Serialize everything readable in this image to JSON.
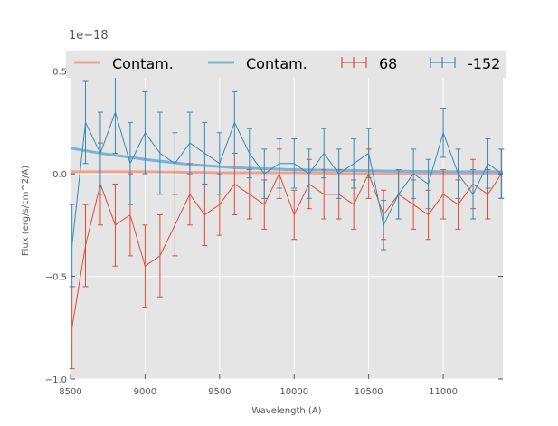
{
  "chart_data": {
    "type": "line",
    "title": "",
    "xlabel": "Wavelength (A)",
    "ylabel": "Flux (erg/s/cm^2/A)",
    "y_scale_label": "1e−18",
    "xlim": [
      8500,
      11400
    ],
    "ylim": [
      -1.0,
      0.6
    ],
    "x_ticks": [
      8500,
      9000,
      9500,
      10000,
      10500,
      11000
    ],
    "x_tick_labels": [
      "8500",
      "9000",
      "9500",
      "10000",
      "10500",
      "11000"
    ],
    "y_ticks": [
      -1.0,
      -0.5,
      0.0,
      0.5
    ],
    "y_tick_labels": [
      "−1.0",
      "−0.5",
      "0.0",
      "0.5"
    ],
    "grid": true,
    "legend_position": "top",
    "legend": [
      "Contam.",
      "Contam.",
      "68",
      "-152"
    ],
    "colors": {
      "red": "#e24a33",
      "blue": "#348abd",
      "contam_red": "#f0a08f",
      "contam_blue": "#7ab3d6",
      "background": "#e5e5e5",
      "grid": "#ffffff"
    },
    "series": [
      {
        "name": "68",
        "kind": "errorbar",
        "color": "#e24a33",
        "x": [
          8510,
          8600,
          8700,
          8800,
          8900,
          9000,
          9100,
          9200,
          9300,
          9400,
          9500,
          9600,
          9700,
          9800,
          9900,
          10000,
          10100,
          10200,
          10300,
          10400,
          10500,
          10600,
          10700,
          10800,
          10900,
          11000,
          11100,
          11200,
          11300,
          11390
        ],
        "y": [
          -0.75,
          -0.35,
          -0.05,
          -0.25,
          -0.2,
          -0.45,
          -0.4,
          -0.25,
          -0.1,
          -0.2,
          -0.15,
          -0.05,
          -0.1,
          -0.15,
          0.0,
          -0.2,
          -0.05,
          -0.1,
          -0.1,
          -0.15,
          0.0,
          -0.2,
          -0.1,
          -0.15,
          -0.2,
          -0.1,
          -0.15,
          -0.05,
          -0.1,
          0.0
        ],
        "yerr": [
          0.2,
          0.2,
          0.2,
          0.2,
          0.2,
          0.2,
          0.2,
          0.15,
          0.15,
          0.15,
          0.15,
          0.15,
          0.12,
          0.12,
          0.12,
          0.12,
          0.12,
          0.12,
          0.12,
          0.12,
          0.12,
          0.12,
          0.12,
          0.12,
          0.12,
          0.12,
          0.12,
          0.12,
          0.12,
          0.12
        ]
      },
      {
        "name": "-152",
        "kind": "errorbar",
        "color": "#348abd",
        "x": [
          8510,
          8600,
          8700,
          8800,
          8900,
          9000,
          9100,
          9200,
          9300,
          9400,
          9500,
          9600,
          9700,
          9800,
          9900,
          10000,
          10100,
          10200,
          10300,
          10400,
          10500,
          10600,
          10700,
          10800,
          10900,
          11000,
          11100,
          11200,
          11300,
          11390
        ],
        "y": [
          -0.35,
          0.25,
          0.1,
          0.3,
          0.05,
          0.2,
          0.1,
          0.05,
          0.15,
          0.1,
          0.05,
          0.25,
          0.1,
          0.0,
          0.05,
          0.05,
          0.0,
          0.1,
          0.0,
          0.05,
          0.1,
          -0.25,
          -0.1,
          0.0,
          -0.05,
          0.2,
          0.0,
          -0.1,
          0.05,
          0.0
        ],
        "yerr": [
          0.2,
          0.2,
          0.2,
          0.2,
          0.2,
          0.2,
          0.2,
          0.15,
          0.15,
          0.15,
          0.15,
          0.15,
          0.12,
          0.12,
          0.12,
          0.12,
          0.12,
          0.12,
          0.12,
          0.12,
          0.12,
          0.12,
          0.12,
          0.12,
          0.12,
          0.12,
          0.12,
          0.12,
          0.12,
          0.12
        ]
      },
      {
        "name": "Contam.",
        "kind": "line",
        "color": "#f0a08f",
        "x": [
          8500,
          9000,
          9500,
          10000,
          10500,
          11000,
          11400
        ],
        "y": [
          0.01,
          0.01,
          0.005,
          0.005,
          0.0,
          0.0,
          0.0
        ]
      },
      {
        "name": "Contam.",
        "kind": "line",
        "color": "#7ab3d6",
        "x": [
          8500,
          8700,
          9000,
          9300,
          9600,
          10000,
          10500,
          11000,
          11400
        ],
        "y": [
          0.125,
          0.1,
          0.07,
          0.045,
          0.03,
          0.02,
          0.015,
          0.01,
          0.01
        ]
      }
    ]
  }
}
